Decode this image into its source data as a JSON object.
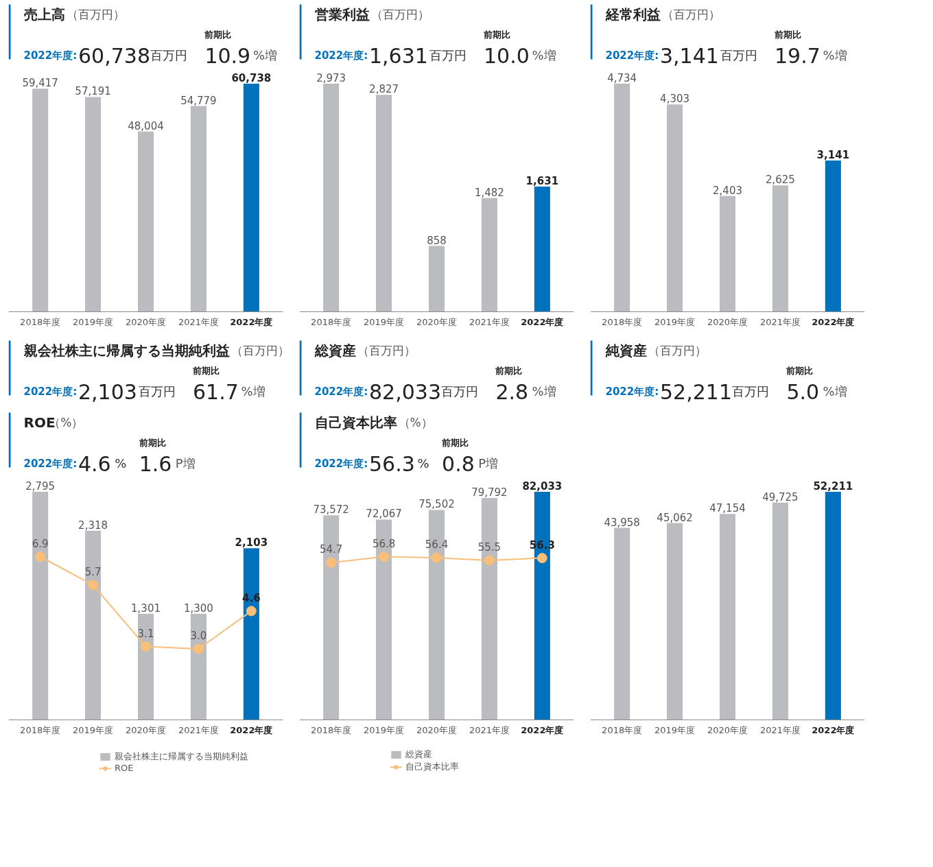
{
  "chart_data": [
    {
      "type": "bar",
      "annotations": [
        "売上高",
        "（百万円）",
        "2022年度:",
        "60,738",
        "百万円",
        "前期比",
        "10.9",
        "%増"
      ],
      "categories": [
        "2018年度",
        "2019年度",
        "2020年度",
        "2021年度",
        "2022年度"
      ],
      "series": [
        {
          "colors": [
            "#bbbcc0",
            "#bbbcc0",
            "#bbbcc0",
            "#bbbcc0",
            "#0071bc"
          ],
          "values": [
            59417,
            57191,
            48004,
            54779,
            60738
          ],
          "value_labels": [
            "59,417",
            "57,191",
            "48,004",
            "54,779",
            "60,738"
          ]
        }
      ]
    },
    {
      "type": "bar",
      "annotations": [
        "営業利益",
        "（百万円）",
        "2022年度:",
        "1,631",
        "百万円",
        "前期比",
        "10.0",
        "%増"
      ],
      "categories": [
        "2018年度",
        "2019年度",
        "2020年度",
        "2021年度",
        "2022年度"
      ],
      "series": [
        {
          "colors": [
            "#bbbcc0",
            "#bbbcc0",
            "#bbbcc0",
            "#bbbcc0",
            "#0071bc"
          ],
          "values": [
            2973,
            2827,
            858,
            1482,
            1631
          ],
          "value_labels": [
            "2,973",
            "2,827",
            "858",
            "1,482",
            "1,631"
          ]
        }
      ]
    },
    {
      "type": "bar",
      "annotations": [
        "経常利益",
        "（百万円）",
        "2022年度:",
        "3,141",
        "百万円",
        "前期比",
        "19.7",
        "%増"
      ],
      "categories": [
        "2018年度",
        "2019年度",
        "2020年度",
        "2021年度",
        "2022年度"
      ],
      "series": [
        {
          "colors": [
            "#bbbcc0",
            "#bbbcc0",
            "#bbbcc0",
            "#bbbcc0",
            "#0071bc"
          ],
          "values": [
            4734,
            4303,
            2403,
            2625,
            3141
          ],
          "value_labels": [
            "4,734",
            "4,303",
            "2,403",
            "2,625",
            "3,141"
          ]
        }
      ]
    },
    {
      "type": "bar",
      "annotations": [
        "親会社株主に帰属する当期純利益",
        "（百万円）",
        "2022年度:",
        "2,103",
        "百万円",
        "前期比",
        "61.7",
        "%増",
        "ROE",
        "（%）",
        "2022年度:",
        "4.6",
        "%",
        "前期比",
        "1.6",
        "P増"
      ],
      "categories": [
        "2018年度",
        "2019年度",
        "2020年度",
        "2021年度",
        "2022年度"
      ],
      "legend": "bottom",
      "marker": "circle",
      "series": [
        {
          "name": "親会社株主に帰属する当期純利益",
          "colors": [
            "#bbbcc0",
            "#bbbcc0",
            "#bbbcc0",
            "#bbbcc0",
            "#0071bc"
          ],
          "values": [
            2795,
            2318,
            1301,
            1300,
            2103
          ],
          "value_labels": [
            "2,795",
            "2,318",
            "1,301",
            "1,300",
            "2,103"
          ]
        },
        {
          "type": "line",
          "name": "ROE",
          "axis": "y2",
          "color": "#f9bf7a",
          "values": [
            6.9,
            5.7,
            3.1,
            3.0,
            4.6
          ],
          "value_labels": [
            "6.9",
            "5.7",
            "3.1",
            "3.0",
            "4.6"
          ]
        }
      ]
    },
    {
      "type": "bar",
      "annotations": [
        "総資産",
        "（百万円）",
        "2022年度:",
        "82,033",
        "百万円",
        "前期比",
        "2.8",
        "%増",
        "自己資本比率",
        "（%）",
        "2022年度:",
        "56.3",
        "%",
        "前期比",
        "0.8",
        "P増"
      ],
      "categories": [
        "2018年度",
        "2019年度",
        "2020年度",
        "2021年度",
        "2022年度"
      ],
      "legend": "bottom",
      "marker": "circle",
      "series": [
        {
          "name": "総資産",
          "colors": [
            "#bbbcc0",
            "#bbbcc0",
            "#bbbcc0",
            "#bbbcc0",
            "#0071bc"
          ],
          "values": [
            73572,
            72067,
            75502,
            79792,
            82033
          ],
          "value_labels": [
            "73,572",
            "72,067",
            "75,502",
            "79,792",
            "82,033"
          ]
        },
        {
          "type": "line",
          "name": "自己資本比率",
          "axis": "y2",
          "color": "#f9bf7a",
          "values": [
            54.7,
            56.8,
            56.4,
            55.5,
            56.3
          ],
          "value_labels": [
            "54.7",
            "56.8",
            "56.4",
            "55.5",
            "56.3"
          ]
        }
      ]
    },
    {
      "type": "bar",
      "annotations": [
        "純資産",
        "（百万円）",
        "2022年度:",
        "52,211",
        "百万円",
        "前期比",
        "5.0",
        "%増"
      ],
      "categories": [
        "2018年度",
        "2019年度",
        "2020年度",
        "2021年度",
        "2022年度"
      ],
      "series": [
        {
          "colors": [
            "#bbbcc0",
            "#bbbcc0",
            "#bbbcc0",
            "#bbbcc0",
            "#0071bc"
          ],
          "values": [
            43958,
            45062,
            47154,
            49725,
            52211
          ],
          "value_labels": [
            "43,958",
            "45,062",
            "47,154",
            "49,725",
            "52,211"
          ]
        }
      ]
    }
  ]
}
